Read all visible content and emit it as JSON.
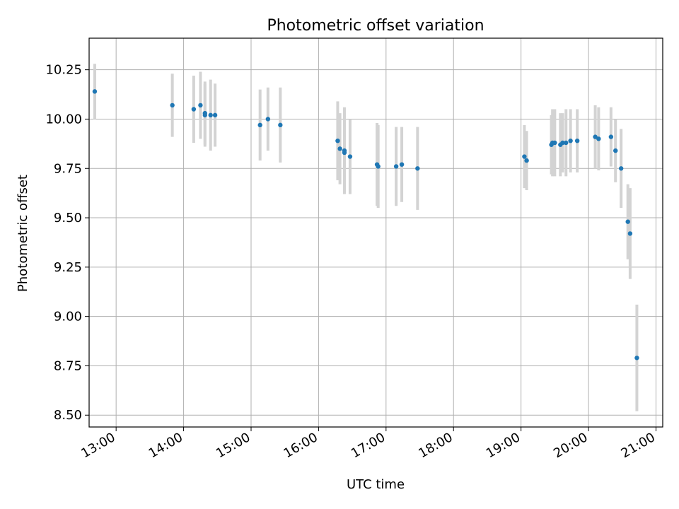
{
  "chart_data": {
    "type": "scatter",
    "title": "Photometric offset variation",
    "xlabel": "UTC time",
    "ylabel": "Photometric offset",
    "xlim": [
      "12:36",
      "21:06"
    ],
    "ylim": [
      8.44,
      10.41
    ],
    "x_ticks": [
      "13:00",
      "14:00",
      "15:00",
      "16:00",
      "17:00",
      "18:00",
      "19:00",
      "20:00",
      "21:00"
    ],
    "y_ticks": [
      "8.50",
      "8.75",
      "9.00",
      "9.25",
      "9.50",
      "9.75",
      "10.00",
      "10.25"
    ],
    "grid": true,
    "legend": "none",
    "colors": {
      "points": "#1f77b4",
      "errorbars": "#d3d3d3",
      "grid": "#b0b0b0"
    },
    "points": [
      {
        "x": "12:41",
        "y": 10.14,
        "err": 0.14
      },
      {
        "x": "13:50",
        "y": 10.07,
        "err": 0.16
      },
      {
        "x": "14:09",
        "y": 10.05,
        "err": 0.17
      },
      {
        "x": "14:15",
        "y": 10.07,
        "err": 0.17
      },
      {
        "x": "14:19",
        "y": 10.03,
        "err": 0.16
      },
      {
        "x": "14:19",
        "y": 10.02,
        "err": 0.16
      },
      {
        "x": "14:24",
        "y": 10.02,
        "err": 0.18
      },
      {
        "x": "14:28",
        "y": 10.02,
        "err": 0.16
      },
      {
        "x": "15:08",
        "y": 9.97,
        "err": 0.18
      },
      {
        "x": "15:15",
        "y": 10.0,
        "err": 0.16
      },
      {
        "x": "15:26",
        "y": 9.97,
        "err": 0.19
      },
      {
        "x": "16:17",
        "y": 9.89,
        "err": 0.2
      },
      {
        "x": "16:19",
        "y": 9.85,
        "err": 0.18
      },
      {
        "x": "16:23",
        "y": 9.84,
        "err": 0.22
      },
      {
        "x": "16:23",
        "y": 9.83,
        "err": 0.2
      },
      {
        "x": "16:28",
        "y": 9.81,
        "err": 0.19
      },
      {
        "x": "16:52",
        "y": 9.77,
        "err": 0.21
      },
      {
        "x": "16:53",
        "y": 9.76,
        "err": 0.21
      },
      {
        "x": "17:09",
        "y": 9.76,
        "err": 0.2
      },
      {
        "x": "17:14",
        "y": 9.77,
        "err": 0.19
      },
      {
        "x": "17:28",
        "y": 9.75,
        "err": 0.21
      },
      {
        "x": "19:03",
        "y": 9.81,
        "err": 0.16
      },
      {
        "x": "19:05",
        "y": 9.79,
        "err": 0.15
      },
      {
        "x": "19:27",
        "y": 9.87,
        "err": 0.15
      },
      {
        "x": "19:28",
        "y": 9.88,
        "err": 0.17
      },
      {
        "x": "19:30",
        "y": 9.88,
        "err": 0.17
      },
      {
        "x": "19:35",
        "y": 9.87,
        "err": 0.16
      },
      {
        "x": "19:37",
        "y": 9.88,
        "err": 0.15
      },
      {
        "x": "19:40",
        "y": 9.88,
        "err": 0.17
      },
      {
        "x": "19:44",
        "y": 9.89,
        "err": 0.16
      },
      {
        "x": "19:50",
        "y": 9.89,
        "err": 0.16
      },
      {
        "x": "20:06",
        "y": 9.91,
        "err": 0.16
      },
      {
        "x": "20:09",
        "y": 9.9,
        "err": 0.16
      },
      {
        "x": "20:20",
        "y": 9.91,
        "err": 0.15
      },
      {
        "x": "20:24",
        "y": 9.84,
        "err": 0.16
      },
      {
        "x": "20:29",
        "y": 9.75,
        "err": 0.2
      },
      {
        "x": "20:35",
        "y": 9.48,
        "err": 0.19
      },
      {
        "x": "20:37",
        "y": 9.42,
        "err": 0.23
      },
      {
        "x": "20:43",
        "y": 8.79,
        "err": 0.27
      }
    ]
  }
}
